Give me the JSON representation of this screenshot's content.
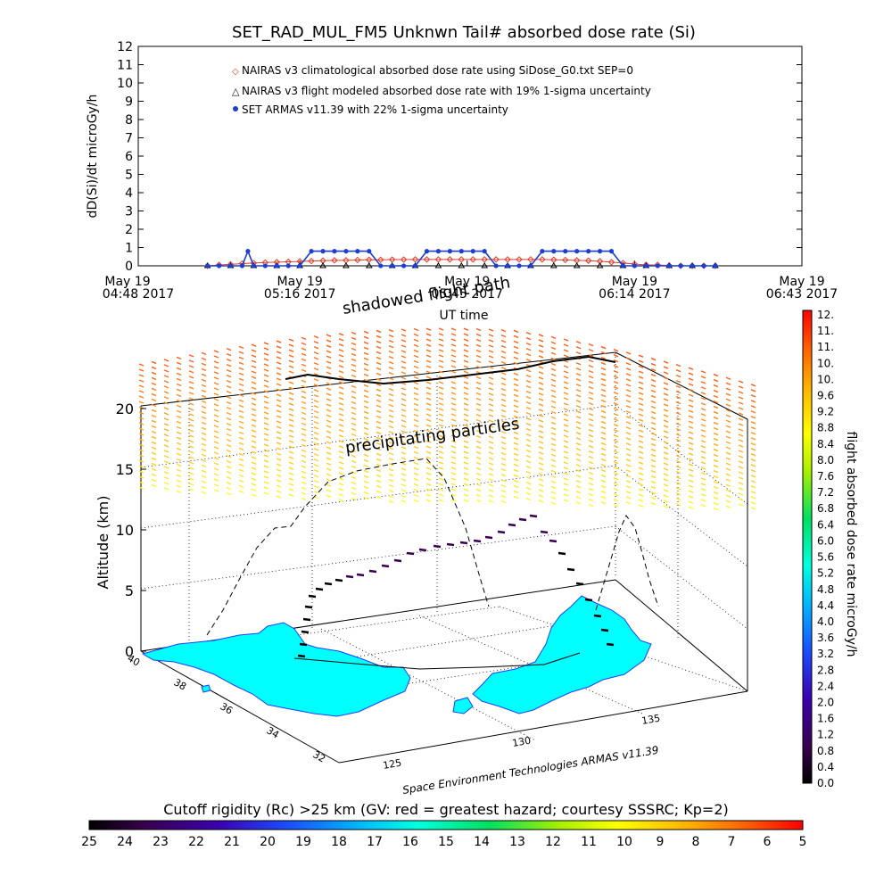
{
  "chart_data": [
    {
      "type": "line",
      "title": "SET_RAD_MUL_FM5 Unknwn Tail#  absorbed dose rate (Si)",
      "ylabel": "dD(Si)/dt microGy/h",
      "xlabel": "UT time",
      "ylim": [
        0,
        12
      ],
      "yticks": [
        "0",
        "1",
        "2",
        "3",
        "4",
        "5",
        "6",
        "7",
        "8",
        "9",
        "10",
        "11",
        "12"
      ],
      "xticks": [
        {
          "date": "May 19",
          "time": "04:48 2017"
        },
        {
          "date": "May 19",
          "time": "05:16 2017"
        },
        {
          "date": "May 19",
          "time": "05:45 2017"
        },
        {
          "date": "May 19",
          "time": "06:14 2017"
        },
        {
          "date": "May 19",
          "time": "06:43 2017"
        }
      ],
      "x_minutes_ticks": [
        0,
        28,
        57,
        86,
        115
      ],
      "series": [
        {
          "name": "NAIRAS v3 climatological absorbed dose rate using SiDose_G0.txt SEP=0",
          "color": "#e03c28",
          "marker": "diamond",
          "x": [
            12,
            14,
            16,
            18,
            20,
            22,
            24,
            26,
            28,
            30,
            32,
            34,
            36,
            38,
            40,
            42,
            44,
            46,
            48,
            50,
            52,
            54,
            56,
            58,
            60,
            62,
            64,
            66,
            68,
            70,
            72,
            74,
            76,
            78,
            80,
            82,
            84,
            86,
            88,
            90,
            92,
            94,
            96,
            98,
            100
          ],
          "values": [
            0,
            0.05,
            0.08,
            0.12,
            0.15,
            0.18,
            0.2,
            0.22,
            0.24,
            0.26,
            0.28,
            0.3,
            0.3,
            0.32,
            0.33,
            0.33,
            0.34,
            0.34,
            0.35,
            0.35,
            0.35,
            0.35,
            0.35,
            0.35,
            0.35,
            0.35,
            0.35,
            0.35,
            0.35,
            0.35,
            0.33,
            0.32,
            0.3,
            0.28,
            0.25,
            0.2,
            0.15,
            0.1,
            0.05,
            0.05,
            0.02,
            0,
            0,
            0,
            0
          ]
        },
        {
          "name": "NAIRAS v3 flight modeled absorbed dose rate with 19% 1-sigma uncertainty",
          "color": "#000000",
          "marker": "triangle",
          "x": [
            12,
            16,
            20,
            24,
            28,
            32,
            36,
            40,
            44,
            48,
            52,
            56,
            60,
            64,
            68,
            72,
            76,
            80,
            84,
            88,
            92,
            96,
            100
          ],
          "values": [
            0,
            0,
            0,
            0,
            0,
            0,
            0,
            0,
            0,
            0,
            0,
            0,
            0,
            0,
            0,
            0,
            0,
            0,
            0,
            0,
            0,
            0,
            0
          ]
        },
        {
          "name": "SET ARMAS v11.39 with 22% 1-sigma uncertainty",
          "color": "#1c3fd0",
          "marker": "circle",
          "x": [
            12,
            14,
            16,
            18,
            19,
            20,
            22,
            24,
            26,
            28,
            30,
            32,
            34,
            36,
            38,
            40,
            42,
            44,
            46,
            48,
            50,
            52,
            54,
            56,
            58,
            60,
            62,
            64,
            66,
            68,
            70,
            72,
            74,
            76,
            78,
            80,
            82,
            84,
            86,
            88,
            90,
            92,
            94,
            96,
            98,
            100
          ],
          "values": [
            0,
            0,
            0,
            0,
            0.8,
            0,
            0,
            0,
            0,
            0,
            0.8,
            0.8,
            0.8,
            0.8,
            0.8,
            0.8,
            0,
            0,
            0,
            0,
            0.8,
            0.8,
            0.8,
            0.8,
            0.8,
            0.8,
            0,
            0,
            0,
            0,
            0.8,
            0.8,
            0.8,
            0.8,
            0.8,
            0.8,
            0.8,
            0,
            0,
            0,
            0,
            0,
            0,
            0,
            0,
            0
          ]
        }
      ]
    },
    {
      "type": "scatter",
      "title": "",
      "ylabel": "Altitude (km)",
      "zticks": [
        "0",
        "5",
        "10",
        "15",
        "20"
      ],
      "lat_ticks": [
        "40",
        "38",
        "36",
        "34",
        "32"
      ],
      "lon_ticks": [
        "125",
        "130",
        "135"
      ],
      "annotations": [
        "shadowed flight path",
        "precipitating particles",
        "Space Environment Technologies ARMAS v11.39"
      ],
      "colorbar": {
        "label": "flight absorbed dose rate microGy/h",
        "ticks": [
          "0.0",
          "0.4",
          "0.8",
          "1.2",
          "1.6",
          "2.0",
          "2.4",
          "2.8",
          "3.2",
          "3.6",
          "4.0",
          "4.4",
          "4.8",
          "5.2",
          "5.6",
          "6.0",
          "6.4",
          "6.8",
          "7.2",
          "7.6",
          "8.0",
          "8.4",
          "8.8",
          "9.2",
          "9.6",
          "10.",
          "10.",
          "11.",
          "11.",
          "12."
        ]
      }
    },
    {
      "type": "heatmap",
      "title": "Cutoff rigidity (Rc) >25 km (GV: red = greatest hazard; courtesy SSSRC; Kp=2)",
      "ticks": [
        "25",
        "24",
        "23",
        "22",
        "21",
        "20",
        "19",
        "18",
        "17",
        "16",
        "15",
        "14",
        "13",
        "12",
        "11",
        "10",
        "9",
        "8",
        "7",
        "6",
        "5"
      ]
    }
  ],
  "colors": {
    "land": "#00ffff",
    "coast": "#1f3fff",
    "nairas_red": "#e03c28",
    "armas_blue": "#1c3fd0"
  }
}
